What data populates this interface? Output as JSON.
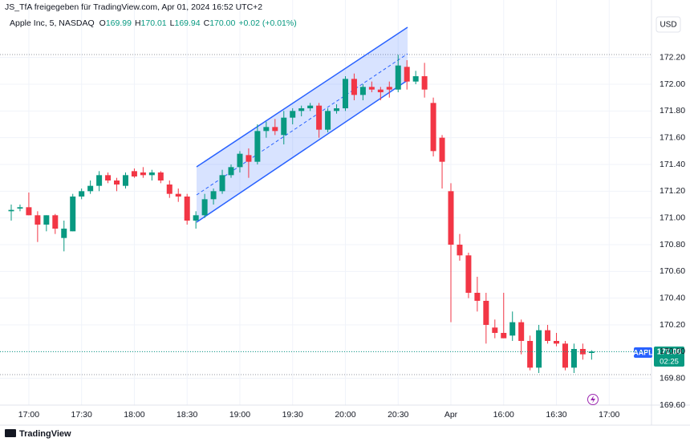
{
  "header": {
    "shared_by": "JS_TfA freigegeben für TradingView.com, Apr 01, 2024 16:52 UTC+2",
    "legend_name": "Apple Inc, 5, NASDAQ",
    "fields": [
      {
        "key": "O",
        "value": "169.99"
      },
      {
        "key": "H",
        "value": "170.01"
      },
      {
        "key": "L",
        "value": "169.94"
      },
      {
        "key": "C",
        "value": "170.00"
      }
    ],
    "change": "+0.02 (+0.01%)",
    "currency": "USD"
  },
  "price_tag": {
    "symbol": "AAPL",
    "price": "170.00",
    "countdown": "02:25"
  },
  "footer": {
    "brand": "TradingView"
  },
  "chart_data": {
    "type": "candlestick",
    "up_color": "#089981",
    "down_color": "#f23645",
    "grid": true,
    "categories": [
      null,
      null,
      "17:00",
      null,
      null,
      null,
      null,
      null,
      "17:30",
      null,
      null,
      null,
      null,
      null,
      "18:00",
      null,
      null,
      null,
      null,
      null,
      "18:30",
      null,
      null,
      null,
      null,
      null,
      "19:00",
      null,
      null,
      null,
      null,
      null,
      "19:30",
      null,
      null,
      null,
      null,
      null,
      "20:00",
      null,
      null,
      null,
      null,
      null,
      "20:30",
      null,
      null,
      null,
      null,
      null,
      "Apr",
      null,
      null,
      null,
      null,
      null,
      "16:00",
      null,
      null,
      null,
      null,
      null,
      "16:30",
      null,
      null,
      null,
      null,
      null,
      "17:00"
    ],
    "open": [
      171.05,
      171.07,
      171.08,
      171.02,
      170.95,
      171.02,
      170.85,
      170.9,
      171.16,
      171.2,
      171.24,
      171.32,
      171.28,
      171.24,
      171.35,
      171.34,
      171.32,
      171.34,
      171.25,
      171.18,
      171.16,
      170.98,
      171.02,
      171.14,
      171.2,
      171.32,
      171.38,
      171.47,
      171.42,
      171.65,
      171.68,
      171.62,
      171.75,
      171.8,
      171.82,
      171.84,
      171.66,
      171.8,
      171.82,
      172.04,
      171.92,
      171.98,
      171.96,
      171.98,
      171.96,
      172.13,
      172.02,
      172.06,
      171.86,
      171.6,
      171.2,
      170.8,
      170.72,
      170.44,
      170.38,
      170.18,
      170.14,
      170.12,
      170.22,
      170.08,
      169.88,
      170.16,
      170.08,
      170.06,
      169.88,
      170.02,
      169.99,
      null,
      null
    ],
    "high": [
      171.1,
      171.1,
      171.19,
      171.05,
      171.02,
      171.03,
      170.98,
      171.18,
      171.22,
      171.28,
      171.35,
      171.34,
      171.3,
      171.34,
      171.37,
      171.38,
      171.36,
      171.35,
      171.28,
      171.22,
      171.18,
      171.05,
      171.18,
      171.22,
      171.36,
      171.4,
      171.5,
      171.52,
      171.7,
      171.72,
      171.74,
      171.8,
      171.82,
      171.84,
      171.86,
      171.86,
      171.82,
      171.85,
      172.06,
      172.08,
      172.0,
      172.02,
      171.98,
      172.02,
      172.22,
      172.18,
      172.1,
      172.16,
      171.9,
      171.62,
      171.26,
      170.88,
      170.74,
      170.56,
      170.44,
      170.24,
      170.44,
      170.3,
      170.24,
      170.12,
      170.2,
      170.2,
      170.14,
      170.08,
      170.06,
      170.06,
      170.01,
      null,
      null
    ],
    "low": [
      170.98,
      171.05,
      171.02,
      170.82,
      170.9,
      170.88,
      170.75,
      170.9,
      171.14,
      171.18,
      171.2,
      171.26,
      171.2,
      171.22,
      171.3,
      171.3,
      171.28,
      171.26,
      171.15,
      171.12,
      170.95,
      170.92,
      171.0,
      171.1,
      171.18,
      171.3,
      171.34,
      171.3,
      171.4,
      171.6,
      171.62,
      171.55,
      171.7,
      171.76,
      171.8,
      171.6,
      171.64,
      171.78,
      171.8,
      171.88,
      171.88,
      171.94,
      171.88,
      171.9,
      171.94,
      171.96,
      172.0,
      171.9,
      171.46,
      171.22,
      170.22,
      170.68,
      170.4,
      170.3,
      170.06,
      170.1,
      170.1,
      170.08,
      169.98,
      169.86,
      169.84,
      170.06,
      170.04,
      169.86,
      169.84,
      169.94,
      169.94,
      null,
      null
    ],
    "close": [
      171.06,
      171.08,
      171.02,
      170.95,
      171.02,
      170.92,
      170.92,
      171.16,
      171.2,
      171.24,
      171.32,
      171.28,
      171.25,
      171.32,
      171.31,
      171.32,
      171.34,
      171.28,
      171.18,
      171.16,
      170.98,
      171.02,
      171.14,
      171.2,
      171.32,
      171.38,
      171.48,
      171.42,
      171.65,
      171.68,
      171.65,
      171.75,
      171.8,
      171.82,
      171.84,
      171.66,
      171.8,
      171.82,
      172.04,
      171.92,
      171.98,
      171.96,
      171.94,
      171.96,
      172.14,
      172.02,
      172.06,
      171.96,
      171.5,
      171.42,
      170.8,
      170.72,
      170.44,
      170.38,
      170.2,
      170.14,
      170.1,
      170.22,
      170.08,
      169.88,
      170.16,
      170.08,
      170.06,
      169.88,
      170.02,
      169.98,
      170.0,
      null,
      null
    ],
    "ylim": [
      169.6,
      172.57
    ],
    "yticks": [
      {
        "value": 169.6,
        "label": "169.60"
      },
      {
        "value": 169.8,
        "label": "169.80"
      },
      {
        "value": 170,
        "label": "170.00"
      },
      {
        "value": 170.2,
        "label": "170.20"
      },
      {
        "value": 170.4,
        "label": "170.40"
      },
      {
        "value": 170.6,
        "label": "170.60"
      },
      {
        "value": 170.8,
        "label": "170.80"
      },
      {
        "value": 171,
        "label": "171.00"
      },
      {
        "value": 171.2,
        "label": "171.20"
      },
      {
        "value": 171.4,
        "label": "171.40"
      },
      {
        "value": 171.6,
        "label": "171.60"
      },
      {
        "value": 171.8,
        "label": "171.80"
      },
      {
        "value": 172,
        "label": "172.00"
      },
      {
        "value": 172.2,
        "label": "172.20"
      }
    ]
  }
}
